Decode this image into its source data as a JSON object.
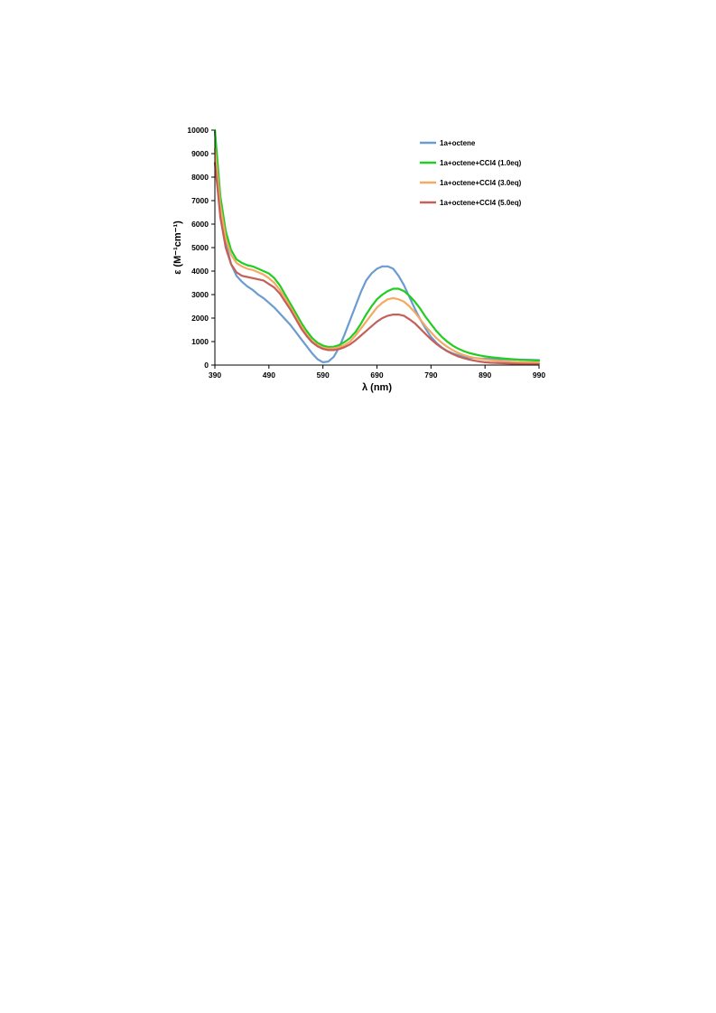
{
  "chart_data": {
    "type": "line",
    "xlabel": "λ (nm)",
    "ylabel": "ε (M⁻¹cm⁻¹)",
    "xlim": [
      390,
      990
    ],
    "ylim": [
      0,
      10000
    ],
    "x_ticks": [
      390,
      490,
      590,
      690,
      790,
      890,
      990
    ],
    "y_ticks": [
      0,
      1000,
      2000,
      3000,
      4000,
      5000,
      6000,
      7000,
      8000,
      9000,
      10000
    ],
    "grid": false,
    "legend_position": "top-right",
    "series": [
      {
        "name": "1a+octene",
        "color": "#6b9bd0",
        "x": [
          390,
          395,
          400,
          410,
          420,
          430,
          440,
          450,
          460,
          470,
          480,
          490,
          500,
          510,
          520,
          530,
          540,
          550,
          560,
          570,
          580,
          590,
          600,
          610,
          620,
          630,
          640,
          650,
          660,
          670,
          680,
          690,
          700,
          710,
          720,
          730,
          740,
          750,
          760,
          770,
          780,
          790,
          800,
          810,
          820,
          830,
          840,
          850,
          860,
          870,
          880,
          890,
          900,
          920,
          940,
          960,
          980,
          990
        ],
        "y": [
          10000,
          8400,
          6900,
          5200,
          4300,
          3800,
          3550,
          3350,
          3200,
          3000,
          2850,
          2650,
          2450,
          2200,
          1950,
          1700,
          1400,
          1100,
          800,
          500,
          250,
          120,
          150,
          350,
          750,
          1300,
          1900,
          2500,
          3100,
          3600,
          3900,
          4100,
          4200,
          4200,
          4100,
          3800,
          3400,
          2900,
          2400,
          1950,
          1550,
          1200,
          950,
          750,
          600,
          500,
          420,
          360,
          320,
          300,
          280,
          270,
          260,
          250,
          240,
          230,
          220,
          210
        ]
      },
      {
        "name": "1a+octene+CCl4 (1.0eq)",
        "color": "#22cc22",
        "x": [
          390,
          395,
          400,
          410,
          420,
          430,
          440,
          450,
          460,
          470,
          480,
          490,
          500,
          510,
          520,
          530,
          540,
          550,
          560,
          570,
          580,
          590,
          600,
          610,
          620,
          630,
          640,
          650,
          660,
          670,
          680,
          690,
          700,
          710,
          720,
          730,
          740,
          750,
          760,
          770,
          780,
          790,
          800,
          810,
          820,
          830,
          840,
          850,
          860,
          870,
          880,
          890,
          900,
          920,
          940,
          960,
          980,
          990
        ],
        "y": [
          10000,
          8600,
          7200,
          5700,
          4900,
          4500,
          4350,
          4250,
          4200,
          4100,
          4000,
          3900,
          3700,
          3400,
          3000,
          2600,
          2200,
          1800,
          1450,
          1150,
          950,
          830,
          770,
          780,
          850,
          980,
          1150,
          1400,
          1750,
          2150,
          2500,
          2800,
          3000,
          3150,
          3250,
          3250,
          3150,
          2950,
          2700,
          2400,
          2050,
          1750,
          1450,
          1200,
          1000,
          830,
          700,
          600,
          520,
          460,
          410,
          370,
          340,
          290,
          250,
          220,
          200,
          190
        ]
      },
      {
        "name": "1a+octene+CCl4 (3.0eq)",
        "color": "#f5a962",
        "x": [
          390,
          395,
          400,
          410,
          420,
          430,
          440,
          450,
          460,
          470,
          480,
          490,
          500,
          510,
          520,
          530,
          540,
          550,
          560,
          570,
          580,
          590,
          600,
          610,
          620,
          630,
          640,
          650,
          660,
          670,
          680,
          690,
          700,
          710,
          720,
          730,
          740,
          750,
          760,
          770,
          780,
          790,
          800,
          810,
          820,
          830,
          840,
          850,
          860,
          870,
          880,
          890,
          900,
          920,
          940,
          960,
          980,
          990
        ],
        "y": [
          9200,
          8000,
          6800,
          5400,
          4700,
          4350,
          4200,
          4100,
          4050,
          3950,
          3850,
          3700,
          3500,
          3200,
          2850,
          2450,
          2050,
          1650,
          1300,
          1020,
          850,
          740,
          700,
          710,
          760,
          850,
          1000,
          1250,
          1550,
          1850,
          2150,
          2450,
          2650,
          2800,
          2850,
          2800,
          2700,
          2500,
          2250,
          1950,
          1650,
          1400,
          1150,
          950,
          780,
          640,
          520,
          430,
          360,
          310,
          270,
          240,
          210,
          170,
          140,
          120,
          110,
          100
        ]
      },
      {
        "name": "1a+octene+CCl4 (5.0eq)",
        "color": "#c4605a",
        "x": [
          390,
          395,
          400,
          410,
          420,
          430,
          440,
          450,
          460,
          470,
          480,
          490,
          500,
          510,
          520,
          530,
          540,
          550,
          560,
          570,
          580,
          590,
          600,
          610,
          620,
          630,
          640,
          650,
          660,
          670,
          680,
          690,
          700,
          710,
          720,
          730,
          740,
          750,
          760,
          770,
          780,
          790,
          800,
          810,
          820,
          830,
          840,
          850,
          860,
          870,
          880,
          890,
          900,
          920,
          940,
          960,
          980,
          990
        ],
        "y": [
          8600,
          7500,
          6300,
          5000,
          4300,
          3950,
          3800,
          3750,
          3700,
          3650,
          3600,
          3450,
          3300,
          3050,
          2700,
          2350,
          1950,
          1550,
          1230,
          970,
          800,
          690,
          640,
          640,
          680,
          760,
          880,
          1050,
          1250,
          1450,
          1650,
          1850,
          2000,
          2100,
          2150,
          2150,
          2100,
          1950,
          1780,
          1550,
          1320,
          1100,
          900,
          730,
          590,
          470,
          370,
          300,
          240,
          190,
          150,
          120,
          100,
          80,
          60,
          50,
          45,
          40
        ]
      }
    ]
  }
}
